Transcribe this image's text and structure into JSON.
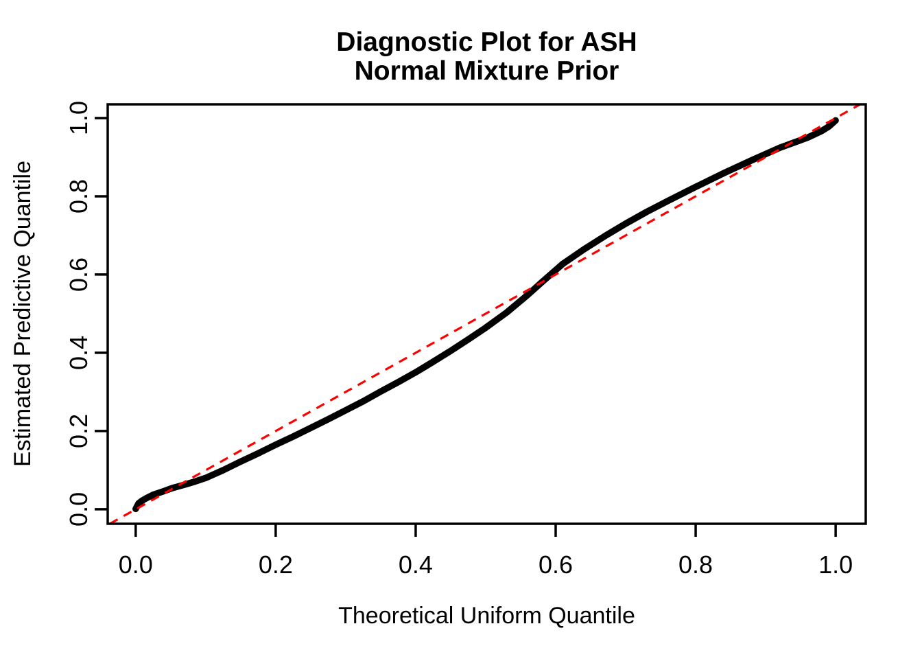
{
  "chart_data": {
    "type": "line",
    "subtype": "qq-uniform-diagnostic",
    "title_lines": [
      "Diagnostic Plot for ASH",
      "Normal Mixture Prior"
    ],
    "xlabel": "Theoretical Uniform Quantile",
    "ylabel": "Estimated Predictive Quantile",
    "xlim": [
      -0.04,
      1.043
    ],
    "ylim": [
      -0.037,
      1.035
    ],
    "x_tick_labels": [
      "0.0",
      "0.2",
      "0.4",
      "0.6",
      "0.8",
      "1.0"
    ],
    "y_tick_labels": [
      "0.0",
      "0.2",
      "0.4",
      "0.6",
      "0.8",
      "1.0"
    ],
    "grid": false,
    "legend": null,
    "colors": {
      "series": "#000000",
      "reference": "#FF0000",
      "background": "#FFFFFF",
      "text": "#000000"
    },
    "series": [
      {
        "name": "estimated predictive quantile vs theoretical uniform quantile",
        "color": "#000000",
        "style": "thick-solid",
        "points": [
          [
            0.0,
            0.001
          ],
          [
            0.004,
            0.015
          ],
          [
            0.009,
            0.022
          ],
          [
            0.016,
            0.029
          ],
          [
            0.025,
            0.037
          ],
          [
            0.038,
            0.045
          ],
          [
            0.052,
            0.054
          ],
          [
            0.068,
            0.062
          ],
          [
            0.085,
            0.071
          ],
          [
            0.1,
            0.08
          ],
          [
            0.125,
            0.1
          ],
          [
            0.15,
            0.122
          ],
          [
            0.175,
            0.143
          ],
          [
            0.2,
            0.165
          ],
          [
            0.225,
            0.186
          ],
          [
            0.25,
            0.208
          ],
          [
            0.275,
            0.23
          ],
          [
            0.3,
            0.253
          ],
          [
            0.325,
            0.276
          ],
          [
            0.35,
            0.301
          ],
          [
            0.375,
            0.325
          ],
          [
            0.4,
            0.35
          ],
          [
            0.425,
            0.377
          ],
          [
            0.45,
            0.405
          ],
          [
            0.475,
            0.434
          ],
          [
            0.5,
            0.464
          ],
          [
            0.53,
            0.503
          ],
          [
            0.56,
            0.548
          ],
          [
            0.58,
            0.58
          ],
          [
            0.61,
            0.627
          ],
          [
            0.64,
            0.664
          ],
          [
            0.67,
            0.698
          ],
          [
            0.7,
            0.73
          ],
          [
            0.73,
            0.76
          ],
          [
            0.76,
            0.788
          ],
          [
            0.8,
            0.824
          ],
          [
            0.84,
            0.859
          ],
          [
            0.88,
            0.892
          ],
          [
            0.92,
            0.924
          ],
          [
            0.94,
            0.937
          ],
          [
            0.96,
            0.95
          ],
          [
            0.98,
            0.967
          ],
          [
            0.99,
            0.978
          ],
          [
            0.997,
            0.989
          ],
          [
            1.0,
            0.994
          ]
        ]
      }
    ],
    "reference_line": {
      "name": "identity line y = x",
      "equation": "y = x",
      "style": "dashed",
      "color": "#FF0000"
    }
  }
}
